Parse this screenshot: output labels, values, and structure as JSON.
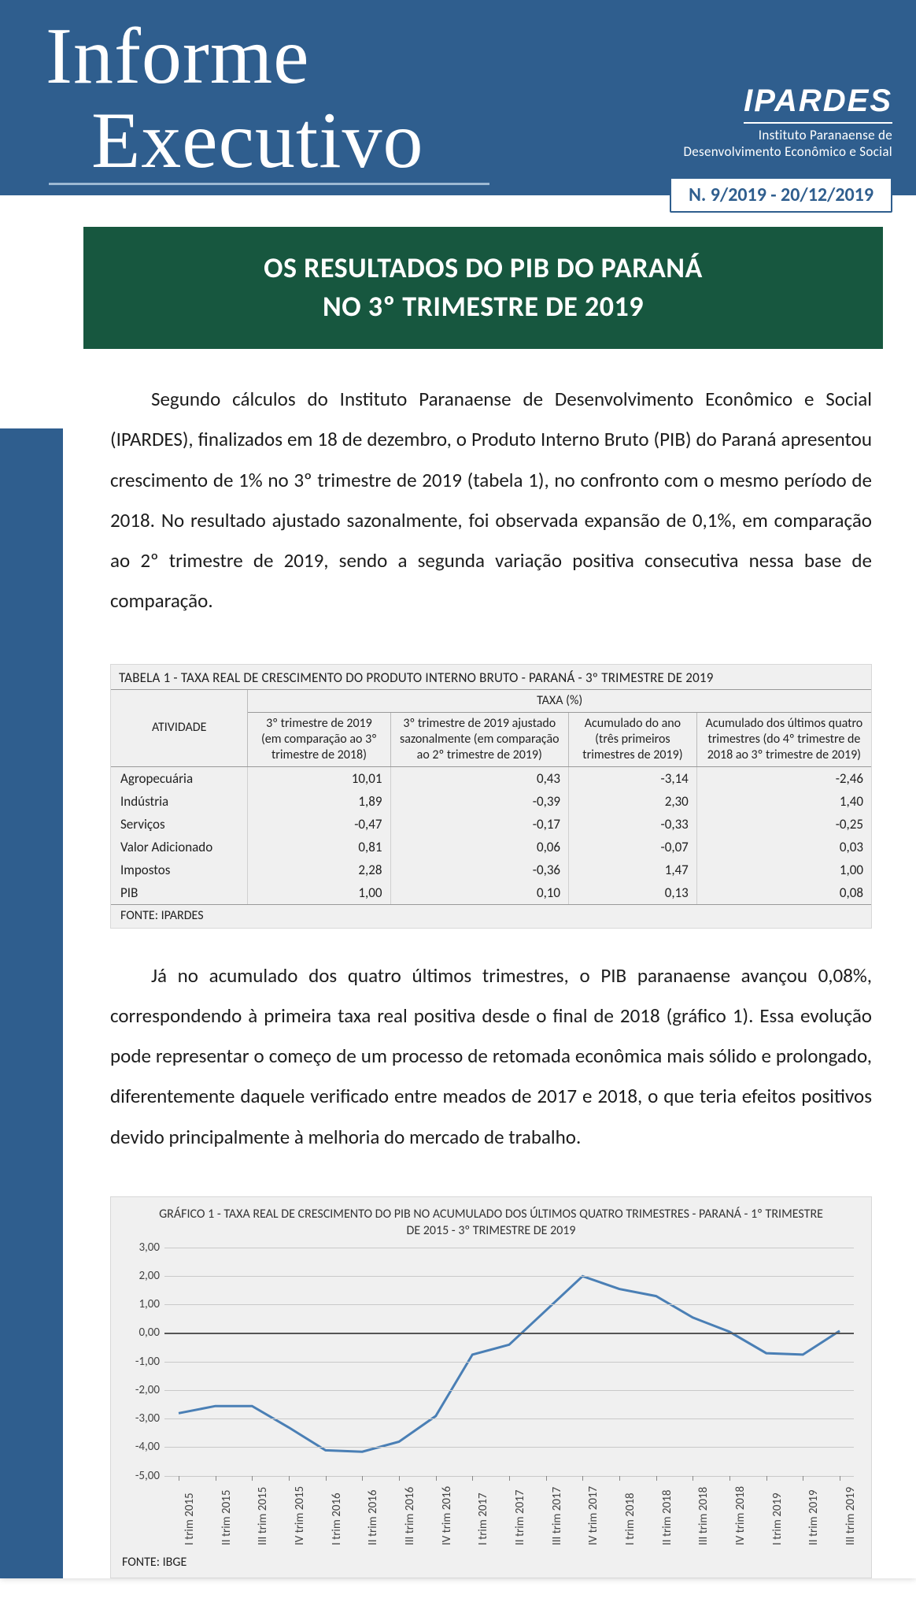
{
  "colors": {
    "header_bg": "#2f5e8e",
    "title_band_bg": "#17573f",
    "page_bg": "#ffffff",
    "table_bg": "#f0f0f0",
    "chart_bg": "#f0f0f0",
    "grid": "#c9c9c9",
    "zero_axis": "#555555",
    "series_line": "#4a7fb5",
    "text": "#1c1c1c"
  },
  "masthead": {
    "line1": "Informe",
    "line2": "Executivo"
  },
  "ipardes": {
    "logo": "IPARDES",
    "sub1": "Instituto Paranaense de",
    "sub2": "Desenvolvimento Econômico e Social"
  },
  "issue": "N. 9/2019  -  20/12/2019",
  "page_title": {
    "line1": "OS RESULTADOS DO PIB DO PARANÁ",
    "line2": "NO 3º TRIMESTRE DE 2019"
  },
  "para1": "Segundo cálculos do Instituto Paranaense de Desenvolvimento Econômico e Social (IPARDES), finalizados em 18 de dezembro, o Produto Interno Bruto (PIB) do Paraná apresentou crescimento de 1% no 3º trimestre de 2019 (tabela 1), no confronto com o mesmo período de 2018. No resultado ajustado sazonalmente, foi observada expansão de 0,1%, em comparação ao 2º trimestre de 2019, sendo a segunda variação positiva consecutiva nessa base de comparação.",
  "para2": "Já no acumulado dos quatro últimos trimestres, o PIB paranaense avançou 0,08%, correspondendo à primeira taxa real positiva desde o final de 2018 (gráfico 1). Essa evolução pode representar o começo de um processo de retomada econômica mais sólido e prolongado, diferentemente daquele verificado entre meados de 2017 e 2018, o que teria efeitos positivos devido principalmente à melhoria do mercado de trabalho.",
  "table": {
    "caption": "TABELA 1 - TAXA REAL DE CRESCIMENTO DO PRODUTO INTERNO BRUTO - PARANÁ - 3º TRIMESTRE DE 2019",
    "head_activity": "ATIVIDADE",
    "head_group": "TAXA (%)",
    "cols": [
      "3º trimestre de 2019 (em comparação ao 3º trimestre de 2018)",
      "3º trimestre de 2019 ajustado sazonalmente (em comparação ao 2º trimestre de 2019)",
      "Acumulado do ano (três primeiros trimestres de 2019)",
      "Acumulado dos últimos quatro trimestres (do 4º trimestre de 2018 ao 3º trimestre de 2019)"
    ],
    "rows": [
      {
        "a": "Agropecuária",
        "v": [
          "10,01",
          "0,43",
          "-3,14",
          "-2,46"
        ]
      },
      {
        "a": "Indústria",
        "v": [
          "1,89",
          "-0,39",
          "2,30",
          "1,40"
        ]
      },
      {
        "a": "Serviços",
        "v": [
          "-0,47",
          "-0,17",
          "-0,33",
          "-0,25"
        ]
      },
      {
        "a": "Valor Adicionado",
        "v": [
          "0,81",
          "0,06",
          "-0,07",
          "0,03"
        ]
      },
      {
        "a": "Impostos",
        "v": [
          "2,28",
          "-0,36",
          "1,47",
          "1,00"
        ]
      },
      {
        "a": "PIB",
        "v": [
          "1,00",
          "0,10",
          "0,13",
          "0,08"
        ]
      }
    ],
    "source": "FONTE: IPARDES"
  },
  "chart": {
    "caption": "GRÁFICO 1 - TAXA REAL DE CRESCIMENTO DO PIB NO ACUMULADO DOS ÚLTIMOS QUATRO TRIMESTRES - PARANÁ - 1º TRIMESTRE DE 2015 - 3º TRIMESTRE DE 2019",
    "ylim": [
      -5,
      3
    ],
    "ytick_step": 1,
    "y_format_suffix": ",00",
    "categories": [
      "I trim 2015",
      "II trim 2015",
      "III trim 2015",
      "IV trim 2015",
      "I trim 2016",
      "II trim 2016",
      "III trim 2016",
      "IV trim 2016",
      "I trim 2017",
      "II trim 2017",
      "III trim 2017",
      "IV trim 2017",
      "I trim 2018",
      "II trim 2018",
      "III trim 2018",
      "IV trim 2018",
      "I trim 2019",
      "II trim 2019",
      "III trim 2019"
    ],
    "values": [
      -2.8,
      -2.55,
      -2.55,
      -3.3,
      -4.1,
      -4.15,
      -3.8,
      -2.9,
      -0.75,
      -0.4,
      0.8,
      2.0,
      1.55,
      1.3,
      0.55,
      0.05,
      -0.7,
      -0.75,
      0.08
    ],
    "line_color": "#4a7fb5",
    "line_width": 3,
    "grid_color": "#c9c9c9",
    "zero_color": "#555555",
    "background_color": "#f0f0f0",
    "tick_fontsize": 15,
    "source": "FONTE: IBGE"
  }
}
